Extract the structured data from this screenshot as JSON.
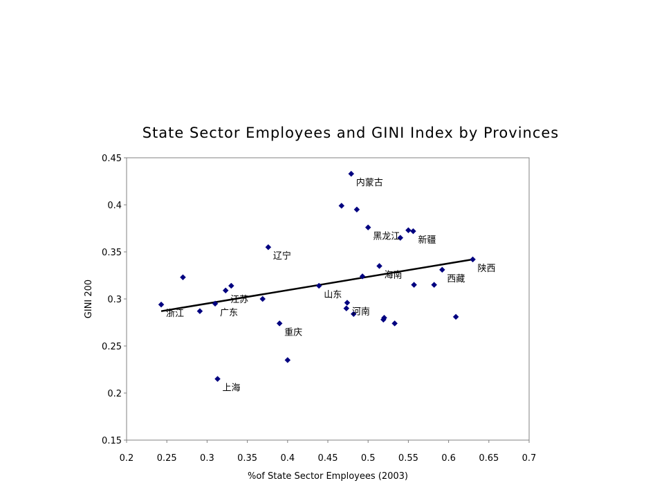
{
  "chart_data": {
    "type": "scatter",
    "title": "State Sector Employees and GINI Index by Provinces",
    "xlabel": "%of State Sector Employees (2003)",
    "ylabel": "GINI 200",
    "xlim": [
      0.2,
      0.7
    ],
    "ylim": [
      0.15,
      0.45
    ],
    "xticks": [
      "0.2",
      "0.25",
      "0.3",
      "0.35",
      "0.4",
      "0.45",
      "0.5",
      "0.55",
      "0.6",
      "0.65",
      "0.7"
    ],
    "yticks": [
      "0.15",
      "0.2",
      "0.25",
      "0.3",
      "0.35",
      "0.4",
      "0.45"
    ],
    "xtick_values": [
      0.2,
      0.25,
      0.3,
      0.35,
      0.4,
      0.45,
      0.5,
      0.55,
      0.6,
      0.65,
      0.7
    ],
    "ytick_values": [
      0.15,
      0.2,
      0.25,
      0.3,
      0.35,
      0.4,
      0.45
    ],
    "grid": false,
    "marker_color": "#000080",
    "trendline": {
      "x": [
        0.243,
        0.63
      ],
      "y": [
        0.287,
        0.342
      ],
      "color": "#000000"
    },
    "points": [
      {
        "x": 0.243,
        "y": 0.294,
        "label": "浙江"
      },
      {
        "x": 0.27,
        "y": 0.323,
        "label": ""
      },
      {
        "x": 0.291,
        "y": 0.287,
        "label": ""
      },
      {
        "x": 0.31,
        "y": 0.295,
        "label": "广东"
      },
      {
        "x": 0.323,
        "y": 0.309,
        "label": "江苏"
      },
      {
        "x": 0.33,
        "y": 0.314,
        "label": ""
      },
      {
        "x": 0.313,
        "y": 0.215,
        "label": "上海"
      },
      {
        "x": 0.369,
        "y": 0.3,
        "label": ""
      },
      {
        "x": 0.376,
        "y": 0.355,
        "label": "辽宁"
      },
      {
        "x": 0.39,
        "y": 0.274,
        "label": "重庆"
      },
      {
        "x": 0.4,
        "y": 0.235,
        "label": ""
      },
      {
        "x": 0.439,
        "y": 0.314,
        "label": "山东"
      },
      {
        "x": 0.467,
        "y": 0.399,
        "label": ""
      },
      {
        "x": 0.479,
        "y": 0.433,
        "label": "内蒙古"
      },
      {
        "x": 0.486,
        "y": 0.395,
        "label": ""
      },
      {
        "x": 0.473,
        "y": 0.29,
        "label": ""
      },
      {
        "x": 0.474,
        "y": 0.296,
        "label": "河南"
      },
      {
        "x": 0.482,
        "y": 0.284,
        "label": ""
      },
      {
        "x": 0.493,
        "y": 0.324,
        "label": ""
      },
      {
        "x": 0.5,
        "y": 0.376,
        "label": "黑龙江"
      },
      {
        "x": 0.514,
        "y": 0.335,
        "label": "海南"
      },
      {
        "x": 0.519,
        "y": 0.278,
        "label": ""
      },
      {
        "x": 0.52,
        "y": 0.28,
        "label": ""
      },
      {
        "x": 0.533,
        "y": 0.274,
        "label": ""
      },
      {
        "x": 0.54,
        "y": 0.365,
        "label": ""
      },
      {
        "x": 0.55,
        "y": 0.373,
        "label": ""
      },
      {
        "x": 0.556,
        "y": 0.372,
        "label": "新疆"
      },
      {
        "x": 0.557,
        "y": 0.315,
        "label": ""
      },
      {
        "x": 0.582,
        "y": 0.315,
        "label": ""
      },
      {
        "x": 0.592,
        "y": 0.331,
        "label": "西藏"
      },
      {
        "x": 0.609,
        "y": 0.281,
        "label": ""
      },
      {
        "x": 0.63,
        "y": 0.342,
        "label": "陕西"
      }
    ]
  }
}
